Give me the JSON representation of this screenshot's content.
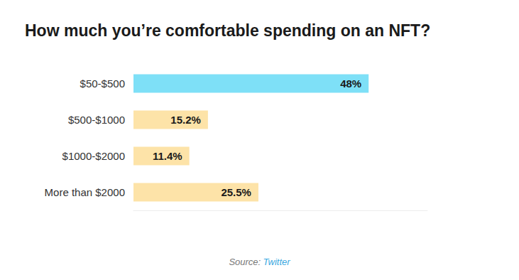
{
  "chart_data": {
    "type": "bar",
    "orientation": "horizontal",
    "title": "How much you’re comfortable spending on an NFT?",
    "categories": [
      "$50-$500",
      "$500-$1000",
      "$1000-$2000",
      "More than $2000"
    ],
    "values": [
      48,
      15.2,
      11.4,
      25.5
    ],
    "value_labels": [
      "48%",
      "15.2%",
      "11.4%",
      "25.5%"
    ],
    "colors": [
      "#7ee0f7",
      "#fde3a8",
      "#fde3a8",
      "#fde3a8"
    ],
    "xlim": [
      0,
      60
    ],
    "data_labels": true,
    "tick_labels": "y",
    "grid": false,
    "source_label": "Source:",
    "source": "Twitter"
  }
}
